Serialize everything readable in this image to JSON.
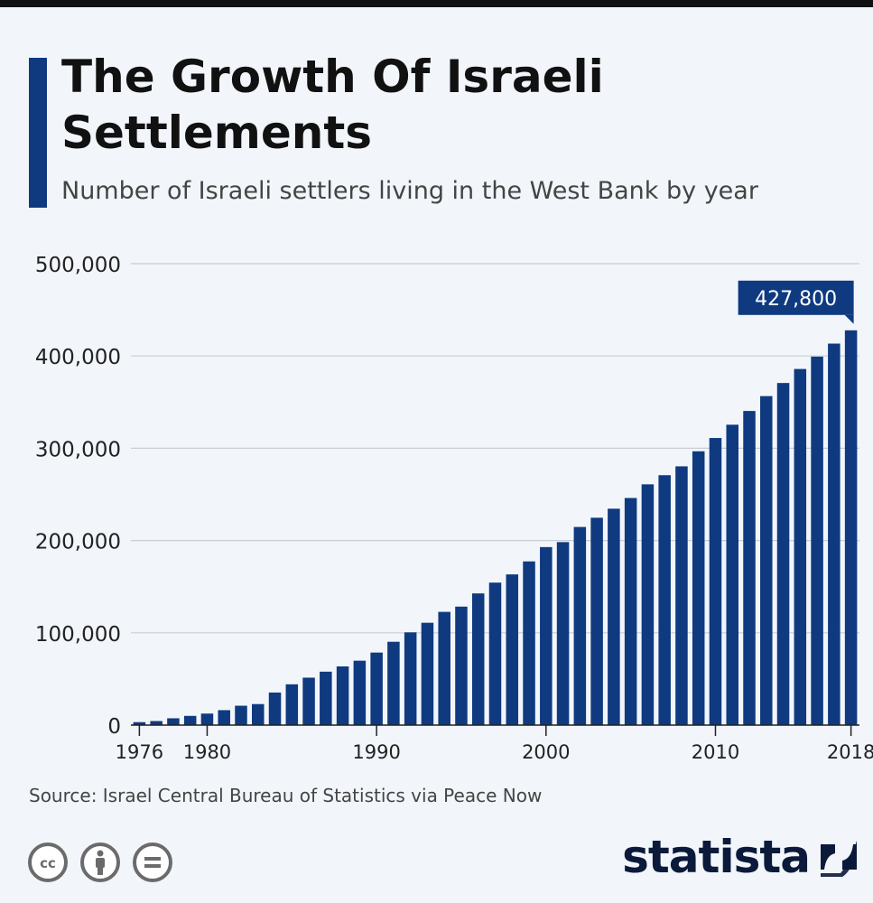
{
  "header": {
    "title": "The Growth Of Israeli Settlements",
    "subtitle": "Number of Israeli settlers living in the West Bank by year"
  },
  "footer": {
    "source": "Source: Israel Central Bureau of Statistics via Peace Now",
    "brand": "statista",
    "license_icons": [
      "cc-icon",
      "attribution-icon",
      "no-derivatives-icon"
    ]
  },
  "colors": {
    "bar": "#0f3a80",
    "accent": "#0f3a80",
    "grid": "#c7cdd6",
    "background": "#f2f6fb"
  },
  "chart_data": {
    "type": "bar",
    "title": "The Growth Of Israeli Settlements",
    "subtitle": "Number of Israeli settlers living in the West Bank by year",
    "xlabel": "",
    "ylabel": "",
    "ylim": [
      0,
      500000
    ],
    "yticks": [
      0,
      100000,
      200000,
      300000,
      400000,
      500000
    ],
    "ytick_labels": [
      "0",
      "100,000",
      "200,000",
      "300,000",
      "400,000",
      "500,000"
    ],
    "xtick_labels": [
      "1976",
      "1980",
      "1990",
      "2000",
      "2010",
      "2018"
    ],
    "grid": true,
    "categories": [
      1976,
      1977,
      1978,
      1979,
      1980,
      1981,
      1982,
      1983,
      1984,
      1985,
      1986,
      1987,
      1988,
      1989,
      1990,
      1991,
      1992,
      1993,
      1994,
      1995,
      1996,
      1997,
      1998,
      1999,
      2000,
      2001,
      2002,
      2003,
      2004,
      2005,
      2006,
      2007,
      2008,
      2009,
      2010,
      2011,
      2012,
      2013,
      2014,
      2015,
      2016,
      2017,
      2018
    ],
    "values": [
      3200,
      4400,
      7400,
      10000,
      12500,
      16200,
      21000,
      22800,
      35300,
      44200,
      51400,
      57900,
      63600,
      69800,
      78600,
      90300,
      100500,
      110900,
      122700,
      128400,
      142700,
      154400,
      163300,
      177400,
      192900,
      198300,
      214700,
      224700,
      234500,
      246100,
      260900,
      270800,
      280400,
      296700,
      311100,
      325500,
      340400,
      356500,
      370700,
      385900,
      399300,
      413400,
      427800
    ],
    "annotation": {
      "category": 2018,
      "label": "427,800"
    }
  }
}
